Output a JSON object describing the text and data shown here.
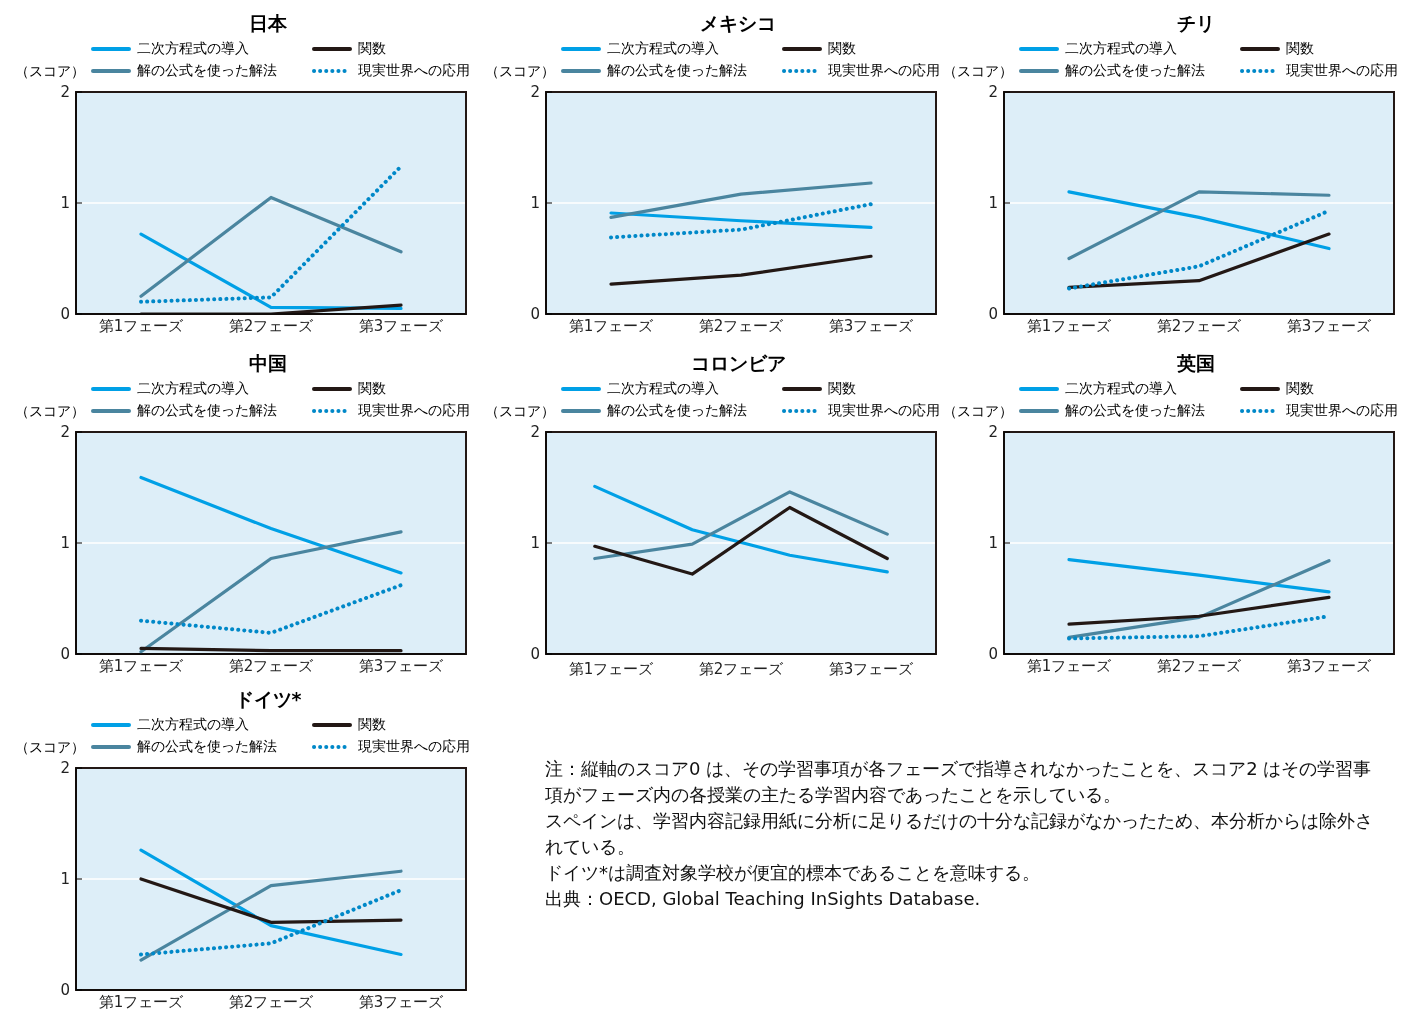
{
  "chart_data": [
    {
      "type": "line",
      "title": "日本",
      "ylabel": "（スコア）",
      "categories": [
        "第1フェーズ",
        "第2フェーズ",
        "第3フェーズ"
      ],
      "ylim": [
        0,
        2
      ],
      "yticks": [
        0,
        1,
        2
      ],
      "grid": "y",
      "legend": "top",
      "series": [
        {
          "name": "二次方程式の導入",
          "color": "#00a0e6",
          "values": [
            0.72,
            0.06,
            0.05
          ]
        },
        {
          "name": "解の公式を使った解法",
          "color": "#4a859f",
          "values": [
            0.16,
            1.05,
            0.56
          ]
        },
        {
          "name": "関数",
          "color": "#231815",
          "values": [
            0,
            0,
            0.08
          ]
        },
        {
          "name": "現実世界への応用",
          "color": "#0088c8",
          "line_style": "dotted",
          "values": [
            0.11,
            0.15,
            1.33
          ]
        }
      ]
    },
    {
      "type": "line",
      "title": "メキシコ",
      "ylabel": "（スコア）",
      "categories": [
        "第1フェーズ",
        "第2フェーズ",
        "第3フェーズ"
      ],
      "ylim": [
        0,
        2
      ],
      "yticks": [
        0,
        1,
        2
      ],
      "grid": "y",
      "legend": "top",
      "series": [
        {
          "name": "二次方程式の導入",
          "color": "#00a0e6",
          "values": [
            0.91,
            0.84,
            0.78
          ]
        },
        {
          "name": "解の公式を使った解法",
          "color": "#4a859f",
          "values": [
            0.87,
            1.08,
            1.18
          ]
        },
        {
          "name": "関数",
          "color": "#231815",
          "values": [
            0.27,
            0.35,
            0.52
          ]
        },
        {
          "name": "現実世界への応用",
          "color": "#0088c8",
          "line_style": "dotted",
          "values": [
            0.69,
            0.76,
            0.99
          ]
        }
      ]
    },
    {
      "type": "line",
      "title": "チリ",
      "ylabel": "（スコア）",
      "categories": [
        "第1フェーズ",
        "第2フェーズ",
        "第3フェーズ"
      ],
      "ylim": [
        0,
        2
      ],
      "yticks": [
        0,
        1,
        2
      ],
      "grid": "y",
      "legend": "top",
      "series": [
        {
          "name": "二次方程式の導入",
          "color": "#00a0e6",
          "values": [
            1.1,
            0.87,
            0.59
          ]
        },
        {
          "name": "解の公式を使った解法",
          "color": "#4a859f",
          "values": [
            0.5,
            1.1,
            1.07
          ]
        },
        {
          "name": "関数",
          "color": "#231815",
          "values": [
            0.24,
            0.3,
            0.72
          ]
        },
        {
          "name": "現実世界への応用",
          "color": "#0088c8",
          "line_style": "dotted",
          "values": [
            0.23,
            0.43,
            0.93
          ]
        }
      ]
    },
    {
      "type": "line",
      "title": "中国",
      "ylabel": "（スコア）",
      "categories": [
        "第1フェーズ",
        "第2フェーズ",
        "第3フェーズ"
      ],
      "ylim": [
        0,
        2
      ],
      "yticks": [
        0,
        1,
        2
      ],
      "grid": "y",
      "legend": "top",
      "series": [
        {
          "name": "二次方程式の導入",
          "color": "#00a0e6",
          "values": [
            1.59,
            1.13,
            0.73
          ]
        },
        {
          "name": "解の公式を使った解法",
          "color": "#4a859f",
          "values": [
            0.02,
            0.86,
            1.1
          ]
        },
        {
          "name": "関数",
          "color": "#231815",
          "values": [
            0.05,
            0.03,
            0.03
          ]
        },
        {
          "name": "現実世界への応用",
          "color": "#0088c8",
          "line_style": "dotted",
          "values": [
            0.3,
            0.19,
            0.62
          ]
        }
      ]
    },
    {
      "type": "line",
      "title": "コロンビア",
      "ylabel": "（スコア）",
      "categories": [
        null,
        null,
        null,
        null
      ],
      "annotations": [
        "第1フェーズ",
        "第2フェーズ",
        "第3フェーズ"
      ],
      "ylim": [
        0,
        2
      ],
      "yticks": [
        0,
        1,
        2
      ],
      "grid": "y",
      "legend": "top",
      "series": [
        {
          "name": "二次方程式の導入",
          "color": "#00a0e6",
          "values": [
            1.51,
            1.12,
            0.89,
            0.74
          ]
        },
        {
          "name": "解の公式を使った解法",
          "color": "#4a859f",
          "values": [
            0.86,
            0.99,
            1.46,
            1.08
          ]
        },
        {
          "name": "関数",
          "color": "#231815",
          "values": [
            0.97,
            0.72,
            1.32,
            0.86
          ]
        },
        {
          "name": "現実世界への応用",
          "color": "#0088c8",
          "line_style": "dotted",
          "values": [
            null,
            null,
            null,
            null
          ]
        }
      ]
    },
    {
      "type": "line",
      "title": "英国",
      "ylabel": "（スコア）",
      "categories": [
        "第1フェーズ",
        "第2フェーズ",
        "第3フェーズ"
      ],
      "ylim": [
        0,
        2
      ],
      "yticks": [
        0,
        1,
        2
      ],
      "grid": "y",
      "legend": "top",
      "series": [
        {
          "name": "二次方程式の導入",
          "color": "#00a0e6",
          "values": [
            0.85,
            0.71,
            0.56
          ]
        },
        {
          "name": "解の公式を使った解法",
          "color": "#4a859f",
          "values": [
            0.15,
            0.33,
            0.84
          ]
        },
        {
          "name": "関数",
          "color": "#231815",
          "values": [
            0.27,
            0.34,
            0.51
          ]
        },
        {
          "name": "現実世界への応用",
          "color": "#0088c8",
          "line_style": "dotted",
          "values": [
            0.14,
            0.16,
            0.34
          ]
        }
      ]
    },
    {
      "type": "line",
      "title": "ドイツ*",
      "ylabel": "（スコア）",
      "categories": [
        "第1フェーズ",
        "第2フェーズ",
        "第3フェーズ"
      ],
      "ylim": [
        0,
        2
      ],
      "yticks": [
        0,
        1,
        2
      ],
      "grid": "y",
      "legend": "top",
      "series": [
        {
          "name": "二次方程式の導入",
          "color": "#00a0e6",
          "values": [
            1.26,
            0.58,
            0.32
          ]
        },
        {
          "name": "解の公式を使った解法",
          "color": "#4a859f",
          "values": [
            0.27,
            0.94,
            1.07
          ]
        },
        {
          "name": "関数",
          "color": "#231815",
          "values": [
            1.0,
            0.61,
            0.63
          ]
        },
        {
          "name": "現実世界への応用",
          "color": "#0088c8",
          "line_style": "dotted",
          "values": [
            0.32,
            0.42,
            0.9
          ]
        }
      ],
      "annotations": [
        "注：縦軸のスコア0 は、その学習事項が各フェーズで指導されなかったことを、スコア2 はその学習事項がフェーズ内の各授業の主たる学習内容であったことを示している。",
        "スペインは、学習内容記録用紙に分析に足りるだけの十分な記録がなかったため、本分析からは除外されている。",
        "ドイツ*は調査対象学校が便宜的標本であることを意味する。",
        "出典：OECD, Global Teaching InSights Database."
      ]
    }
  ]
}
